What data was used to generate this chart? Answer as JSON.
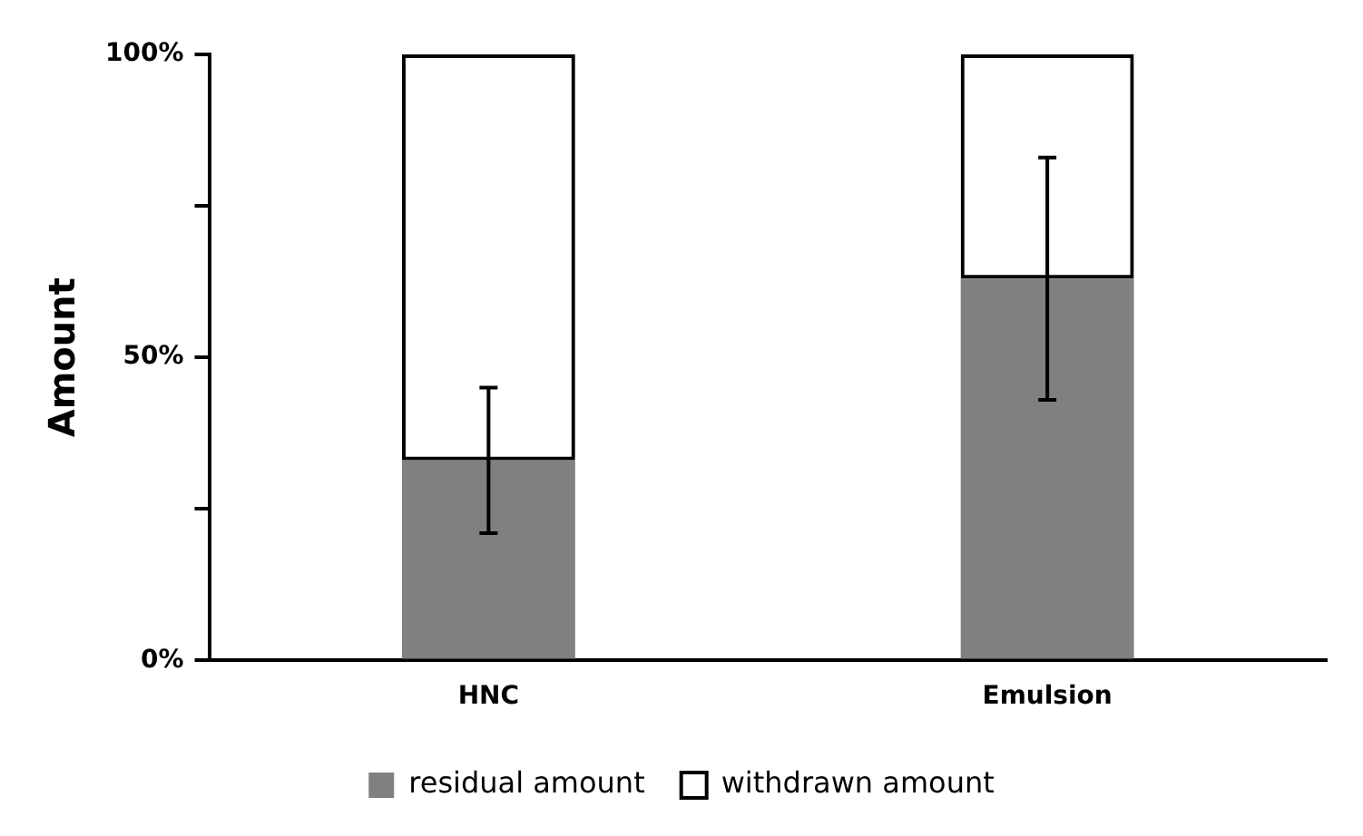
{
  "chart_data": {
    "type": "bar",
    "ylabel": "Amount",
    "categories": [
      "HNC",
      "Emulsion"
    ],
    "stacked": true,
    "series": [
      {
        "name": "residual amount",
        "color": "#808080",
        "values": [
          33,
          63
        ],
        "errors": [
          12,
          20
        ]
      },
      {
        "name": "withdrawn amount",
        "color": "#000000",
        "values": [
          67,
          37
        ]
      }
    ],
    "ylim": [
      0,
      100
    ],
    "yticks": [
      {
        "value": 0,
        "label": "0%"
      },
      {
        "value": 25,
        "label": null
      },
      {
        "value": 50,
        "label": "50%"
      },
      {
        "value": 75,
        "label": null
      },
      {
        "value": 100,
        "label": "100%"
      }
    ],
    "grid": false,
    "legend": "bottom"
  }
}
